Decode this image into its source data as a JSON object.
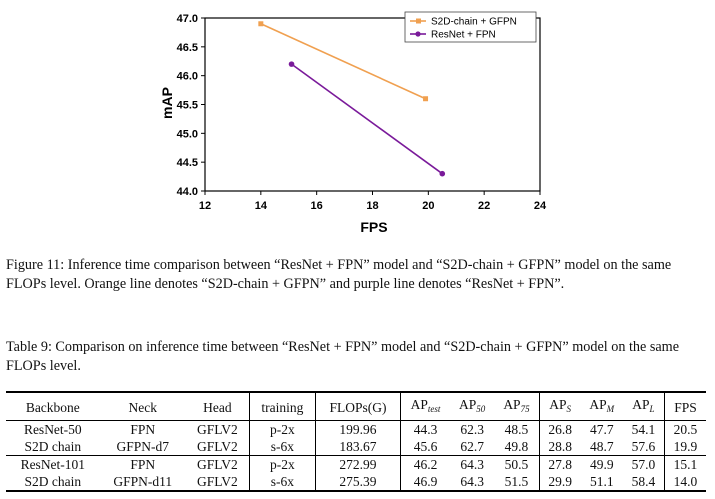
{
  "chart_data": {
    "type": "line",
    "xlabel": "FPS",
    "ylabel": "mAP",
    "xlim": [
      12,
      24
    ],
    "ylim": [
      44.0,
      47.0
    ],
    "x_ticks": [
      "12",
      "14",
      "16",
      "18",
      "20",
      "22",
      "24"
    ],
    "y_ticks": [
      "44.0",
      "44.5",
      "45.0",
      "45.5",
      "46.0",
      "46.5",
      "47.0"
    ],
    "legend_position": "top-right",
    "series": [
      {
        "name": "S2D-chain + GFPN",
        "color": "#f0a050",
        "marker": "square",
        "x": [
          14.0,
          19.9
        ],
        "y": [
          46.9,
          45.6
        ]
      },
      {
        "name": "ResNet + FPN",
        "color": "#7a1a9a",
        "marker": "circle",
        "x": [
          15.1,
          20.5
        ],
        "y": [
          46.2,
          44.3
        ]
      }
    ]
  },
  "figure_caption": "Figure 11: Inference time comparison between “ResNet + FPN” model and “S2D-chain + GFPN” model on the same FLOPs level. Orange line denotes “S2D-chain + GFPN” and purple line denotes “ResNet + FPN”.",
  "table_caption": "Table 9: Comparison on inference time between “ResNet + FPN” model and “S2D-chain + GFPN” model on the same FLOPs level.",
  "table": {
    "headers": {
      "backbone": "Backbone",
      "neck": "Neck",
      "head": "Head",
      "training": "training",
      "flops": "FLOPs(G)",
      "ap": "AP",
      "sub_test": "test",
      "sub_50": "50",
      "sub_75": "75",
      "sub_s": "S",
      "sub_m": "M",
      "sub_l": "L",
      "fps": "FPS"
    },
    "rows": [
      [
        "ResNet-50",
        "FPN",
        "GFLV2",
        "p-2x",
        "199.96",
        "44.3",
        "62.3",
        "48.5",
        "26.8",
        "47.7",
        "54.1",
        "20.5"
      ],
      [
        "S2D chain",
        "GFPN-d7",
        "GFLV2",
        "s-6x",
        "183.67",
        "45.6",
        "62.7",
        "49.8",
        "28.8",
        "48.7",
        "57.6",
        "19.9"
      ],
      [
        "ResNet-101",
        "FPN",
        "GFLV2",
        "p-2x",
        "272.99",
        "46.2",
        "64.3",
        "50.5",
        "27.8",
        "49.9",
        "57.0",
        "15.1"
      ],
      [
        "S2D chain",
        "GFPN-d11",
        "GFLV2",
        "s-6x",
        "275.39",
        "46.9",
        "64.3",
        "51.5",
        "29.9",
        "51.1",
        "58.4",
        "14.0"
      ]
    ]
  }
}
